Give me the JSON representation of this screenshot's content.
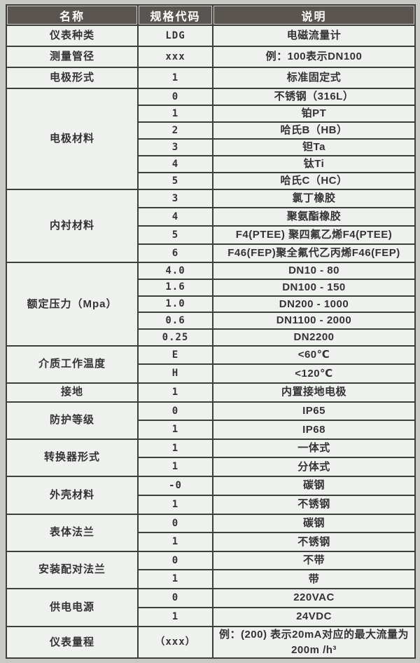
{
  "colors": {
    "header_bg": "#5a5551",
    "header_text": "#ffffff",
    "row_bg": "#eef1ee",
    "border": "#3c3f3c",
    "page_bg": "#c9cac7",
    "text": "#333333"
  },
  "table": {
    "columns": [
      "名称",
      "规格代码",
      "说明"
    ],
    "groups": [
      {
        "name": "仪表种类",
        "rows": [
          {
            "code": "LDG",
            "desc": "电磁流量计"
          }
        ]
      },
      {
        "name": "测量管径",
        "rows": [
          {
            "code": "xxx",
            "desc": "例：100表示DN100"
          }
        ]
      },
      {
        "name": "电极形式",
        "rows": [
          {
            "code": "1",
            "desc": "标准固定式"
          }
        ]
      },
      {
        "name": "电极材料",
        "rows": [
          {
            "code": "0",
            "desc": "不锈钢（316L）"
          },
          {
            "code": "1",
            "desc": "铂PT"
          },
          {
            "code": "2",
            "desc": "哈氏B（HB）"
          },
          {
            "code": "3",
            "desc": "钽Ta"
          },
          {
            "code": "4",
            "desc": "钛Ti"
          },
          {
            "code": "5",
            "desc": "哈氏C（HC）"
          }
        ]
      },
      {
        "name": "内衬材料",
        "rows": [
          {
            "code": "3",
            "desc": "氯丁橡胶"
          },
          {
            "code": "4",
            "desc": "聚氨酯橡胶"
          },
          {
            "code": "5",
            "desc": "F4(PTEE) 聚四氟乙烯F4(PTEE)"
          },
          {
            "code": "6",
            "desc": "F46(FEP)聚全氟代乙丙烯F46(FEP)"
          }
        ]
      },
      {
        "name": "额定压力（Mpa）",
        "rows": [
          {
            "code": "4.0",
            "desc": "DN10 - 80"
          },
          {
            "code": "1.6",
            "desc": "DN100 - 150"
          },
          {
            "code": "1.0",
            "desc": "DN200 - 1000"
          },
          {
            "code": "0.6",
            "desc": "DN1100 - 2000"
          },
          {
            "code": "0.25",
            "desc": "DN2200"
          }
        ]
      },
      {
        "name": "介质工作温度",
        "rows": [
          {
            "code": "E",
            "desc": "<60℃"
          },
          {
            "code": "H",
            "desc": "<120℃"
          }
        ]
      },
      {
        "name": "接地",
        "rows": [
          {
            "code": "1",
            "desc": "内置接地电极"
          }
        ]
      },
      {
        "name": "防护等级",
        "rows": [
          {
            "code": "0",
            "desc": "IP65"
          },
          {
            "code": "1",
            "desc": "IP68"
          }
        ]
      },
      {
        "name": "转换器形式",
        "rows": [
          {
            "code": "1",
            "desc": "一体式"
          },
          {
            "code": "1",
            "desc": "分体式"
          }
        ]
      },
      {
        "name": "外壳材料",
        "rows": [
          {
            "code": "-0",
            "desc": "碳钢"
          },
          {
            "code": "1",
            "desc": "不锈钢"
          }
        ]
      },
      {
        "name": "表体法兰",
        "rows": [
          {
            "code": "0",
            "desc": "碳钢"
          },
          {
            "code": "1",
            "desc": "不锈钢"
          }
        ]
      },
      {
        "name": "安装配对法兰",
        "rows": [
          {
            "code": "0",
            "desc": "不带"
          },
          {
            "code": "1",
            "desc": "带"
          }
        ]
      },
      {
        "name": "供电电源",
        "rows": [
          {
            "code": "0",
            "desc": "220VAC"
          },
          {
            "code": "1",
            "desc": "24VDC"
          }
        ]
      },
      {
        "name": "仪表量程",
        "rows": [
          {
            "code": "（xxx）",
            "desc": "例：(200) 表示20mA对应的最大流量为200m /h³"
          }
        ]
      }
    ]
  }
}
